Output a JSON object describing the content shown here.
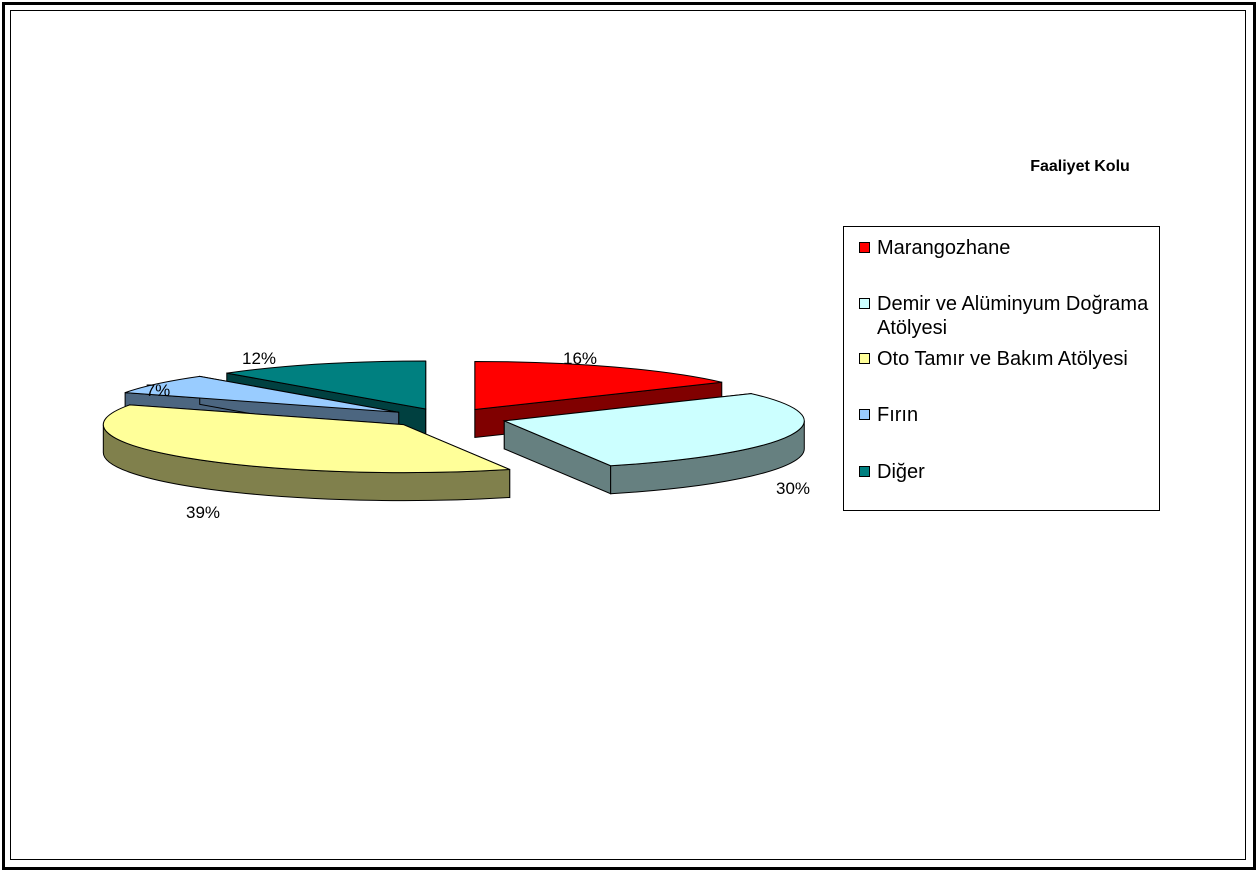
{
  "chart_data": {
    "type": "pie",
    "title": "Faaliyet Kolu",
    "categories": [
      "Marangozhane",
      "Demir ve Alüminyum Doğrama Atölyesi",
      "Oto Tamır ve Bakım Atölyesi",
      "Fırın",
      "Diğer"
    ],
    "values": [
      16,
      30,
      39,
      7,
      12
    ],
    "data_labels": [
      "16%",
      "30%",
      "39%",
      "7%",
      "12%"
    ],
    "colors": {
      "top": [
        "#ff0000",
        "#ccffff",
        "#ffff99",
        "#99ccff",
        "#008080"
      ],
      "side": [
        "#800000",
        "#668080",
        "#80804c",
        "#4c6680",
        "#004040"
      ]
    },
    "legend_position": "right",
    "exploded": true,
    "three_d": true
  }
}
